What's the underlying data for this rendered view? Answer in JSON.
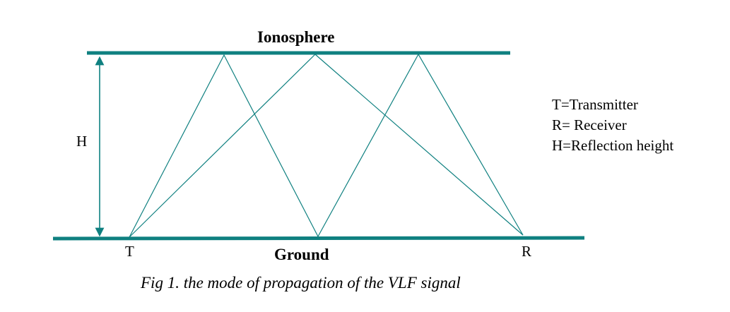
{
  "diagram": {
    "top_label": "Ionosphere",
    "bottom_label": "Ground",
    "height_label": "H",
    "transmitter_label": "T",
    "receiver_label": "R",
    "legend": [
      "T=Transmitter",
      "R= Receiver",
      "H=Reflection height"
    ],
    "caption": "Fig 1. the mode of propagation of the VLF signal",
    "line_color": "#0f8080"
  }
}
